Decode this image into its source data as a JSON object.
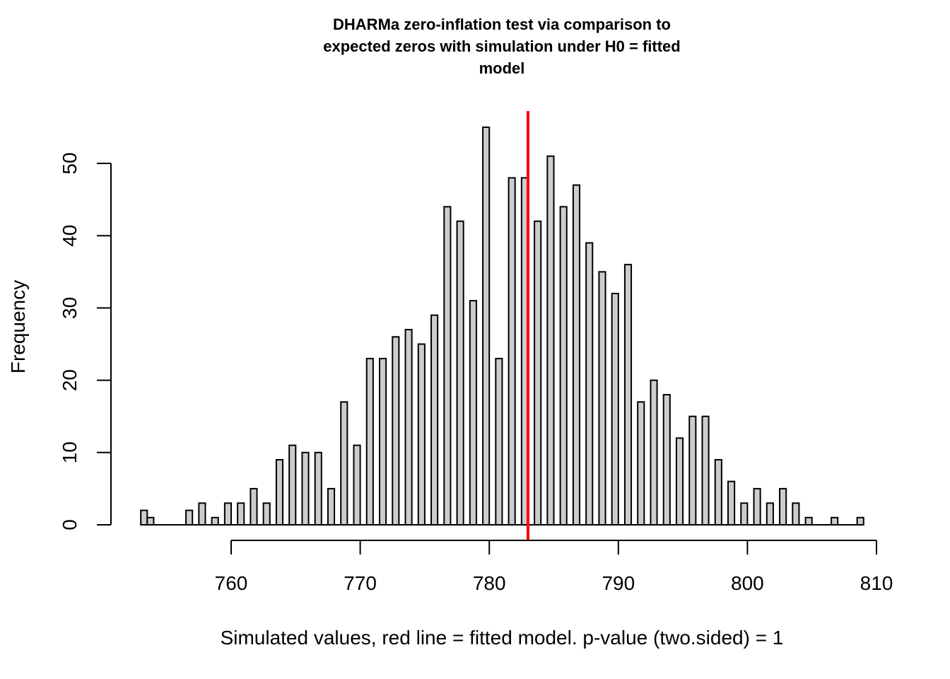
{
  "chart_data": {
    "type": "bar",
    "subtype": "histogram",
    "title_lines": [
      "DHARMa zero-inflation test via comparison to",
      "expected zeros with simulation under H0 = fitted",
      "model"
    ],
    "xlabel": "Simulated values, red line = fitted model. p-value (two.sided) = 1",
    "ylabel": "Frequency",
    "xlim": [
      752.4,
      810
    ],
    "ylim": [
      0,
      50
    ],
    "x_ticks": [
      760,
      770,
      780,
      790,
      800,
      810
    ],
    "x_tick_labels": [
      "760",
      "770",
      "780",
      "790",
      "800",
      "810"
    ],
    "y_ticks": [
      0,
      10,
      20,
      30,
      40,
      50
    ],
    "y_tick_labels": [
      "0",
      "10",
      "20",
      "30",
      "40",
      "50"
    ],
    "bin_width": 0.5,
    "bins": [
      {
        "left": 753.0,
        "count": 2
      },
      {
        "left": 753.5,
        "count": 1
      },
      {
        "left": 754.5,
        "count": 0
      },
      {
        "left": 755.5,
        "count": 0
      },
      {
        "left": 756.5,
        "count": 2
      },
      {
        "left": 757.5,
        "count": 3
      },
      {
        "left": 758.5,
        "count": 1
      },
      {
        "left": 759.5,
        "count": 3
      },
      {
        "left": 760.5,
        "count": 3
      },
      {
        "left": 761.5,
        "count": 5
      },
      {
        "left": 762.5,
        "count": 3
      },
      {
        "left": 763.5,
        "count": 9
      },
      {
        "left": 764.5,
        "count": 11
      },
      {
        "left": 765.5,
        "count": 10
      },
      {
        "left": 766.5,
        "count": 10
      },
      {
        "left": 767.5,
        "count": 5
      },
      {
        "left": 768.5,
        "count": 17
      },
      {
        "left": 769.5,
        "count": 11
      },
      {
        "left": 770.5,
        "count": 23
      },
      {
        "left": 771.5,
        "count": 23
      },
      {
        "left": 772.5,
        "count": 26
      },
      {
        "left": 773.5,
        "count": 27
      },
      {
        "left": 774.5,
        "count": 25
      },
      {
        "left": 775.5,
        "count": 29
      },
      {
        "left": 776.5,
        "count": 44
      },
      {
        "left": 777.5,
        "count": 42
      },
      {
        "left": 778.5,
        "count": 31
      },
      {
        "left": 779.5,
        "count": 55
      },
      {
        "left": 780.5,
        "count": 23
      },
      {
        "left": 781.5,
        "count": 48
      },
      {
        "left": 782.5,
        "count": 48
      },
      {
        "left": 783.5,
        "count": 42
      },
      {
        "left": 784.5,
        "count": 51
      },
      {
        "left": 785.5,
        "count": 44
      },
      {
        "left": 786.5,
        "count": 47
      },
      {
        "left": 787.5,
        "count": 39
      },
      {
        "left": 788.5,
        "count": 35
      },
      {
        "left": 789.5,
        "count": 32
      },
      {
        "left": 790.5,
        "count": 36
      },
      {
        "left": 791.5,
        "count": 17
      },
      {
        "left": 792.5,
        "count": 20
      },
      {
        "left": 793.5,
        "count": 18
      },
      {
        "left": 794.5,
        "count": 12
      },
      {
        "left": 795.5,
        "count": 15
      },
      {
        "left": 796.5,
        "count": 15
      },
      {
        "left": 797.5,
        "count": 9
      },
      {
        "left": 798.5,
        "count": 6
      },
      {
        "left": 799.5,
        "count": 3
      },
      {
        "left": 800.5,
        "count": 5
      },
      {
        "left": 801.5,
        "count": 3
      },
      {
        "left": 802.5,
        "count": 5
      },
      {
        "left": 803.5,
        "count": 3
      },
      {
        "left": 804.5,
        "count": 1
      },
      {
        "left": 805.5,
        "count": 0
      },
      {
        "left": 806.5,
        "count": 1
      },
      {
        "left": 807.5,
        "count": 0
      },
      {
        "left": 808.5,
        "count": 1
      }
    ],
    "reference_line": {
      "x": 783,
      "label": "fitted model",
      "color": "#ff0000"
    },
    "bar_fill": "#cccccc",
    "bar_stroke": "#000000",
    "grid": false,
    "legend": "none"
  }
}
